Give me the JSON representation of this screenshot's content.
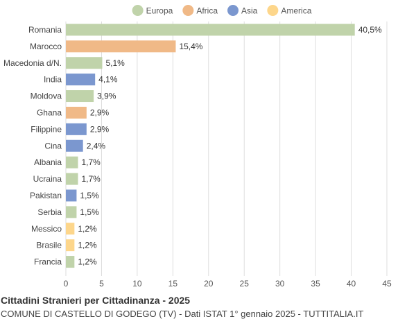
{
  "title": "Cittadini Stranieri per Cittadinanza - 2025",
  "subtitle": "COMUNE DI CASTELLO DI GODEGO (TV) - Dati ISTAT 1° gennaio 2025 - TUTTITALIA.IT",
  "chart_data": {
    "type": "bar",
    "orientation": "horizontal",
    "legend_position": "top-center",
    "grid": true,
    "xlim": [
      0,
      45
    ],
    "x_ticks": [
      "0",
      "5",
      "10",
      "15",
      "20",
      "25",
      "30",
      "35",
      "40",
      "45"
    ],
    "legend": [
      {
        "name": "Europa",
        "color": "#c0d3aa"
      },
      {
        "name": "Africa",
        "color": "#f0b987"
      },
      {
        "name": "Asia",
        "color": "#7b97cf"
      },
      {
        "name": "America",
        "color": "#fdd68b"
      }
    ],
    "bars": [
      {
        "category": "Romania",
        "value": 40.5,
        "label": "40,5%",
        "group": "Europa"
      },
      {
        "category": "Marocco",
        "value": 15.4,
        "label": "15,4%",
        "group": "Africa"
      },
      {
        "category": "Macedonia d/N.",
        "value": 5.1,
        "label": "5,1%",
        "group": "Europa"
      },
      {
        "category": "India",
        "value": 4.1,
        "label": "4,1%",
        "group": "Asia"
      },
      {
        "category": "Moldova",
        "value": 3.9,
        "label": "3,9%",
        "group": "Europa"
      },
      {
        "category": "Ghana",
        "value": 2.9,
        "label": "2,9%",
        "group": "Africa"
      },
      {
        "category": "Filippine",
        "value": 2.9,
        "label": "2,9%",
        "group": "Asia"
      },
      {
        "category": "Cina",
        "value": 2.4,
        "label": "2,4%",
        "group": "Asia"
      },
      {
        "category": "Albania",
        "value": 1.7,
        "label": "1,7%",
        "group": "Europa"
      },
      {
        "category": "Ucraina",
        "value": 1.7,
        "label": "1,7%",
        "group": "Europa"
      },
      {
        "category": "Pakistan",
        "value": 1.5,
        "label": "1,5%",
        "group": "Asia"
      },
      {
        "category": "Serbia",
        "value": 1.5,
        "label": "1,5%",
        "group": "Europa"
      },
      {
        "category": "Messico",
        "value": 1.2,
        "label": "1,2%",
        "group": "America"
      },
      {
        "category": "Brasile",
        "value": 1.2,
        "label": "1,2%",
        "group": "America"
      },
      {
        "category": "Francia",
        "value": 1.2,
        "label": "1,2%",
        "group": "Europa"
      }
    ]
  }
}
